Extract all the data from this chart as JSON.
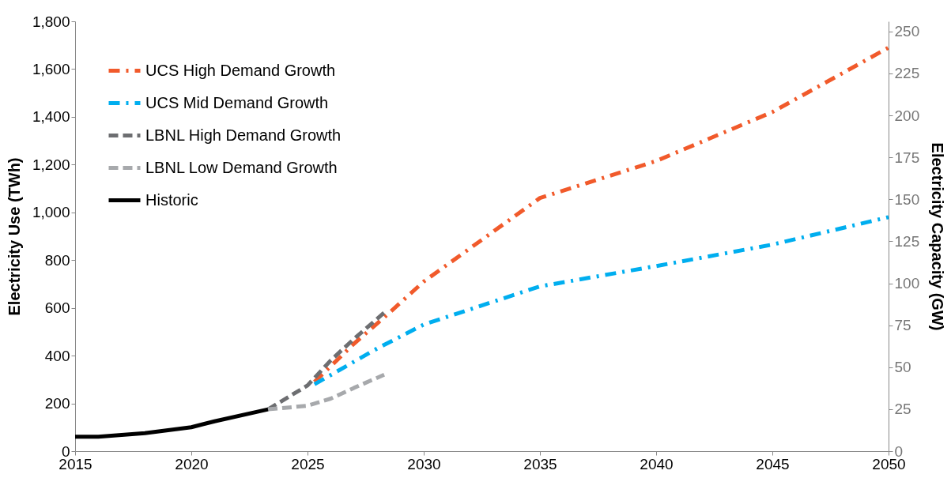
{
  "chart_data": {
    "type": "line",
    "xlabel": null,
    "ylabel": "Electricity Use (TWh)",
    "y2label": "Electricity Capacity (GW)",
    "xlim": [
      2015,
      2050
    ],
    "xticks": [
      2015,
      2020,
      2025,
      2030,
      2035,
      2040,
      2045,
      2050
    ],
    "ylim": [
      0,
      1800
    ],
    "yticks": [
      {
        "value": 0,
        "label": "0"
      },
      {
        "value": 200,
        "label": "200"
      },
      {
        "value": 400,
        "label": "400"
      },
      {
        "value": 600,
        "label": "600"
      },
      {
        "value": 800,
        "label": "800"
      },
      {
        "value": 1000,
        "label": "1,000"
      },
      {
        "value": 1200,
        "label": "1,200"
      },
      {
        "value": 1400,
        "label": "1,400"
      },
      {
        "value": 1600,
        "label": "1,600"
      },
      {
        "value": 1800,
        "label": "1,800"
      }
    ],
    "y2lim": [
      0,
      256
    ],
    "y2ticks": [
      0,
      25,
      50,
      75,
      100,
      125,
      150,
      175,
      200,
      225,
      250
    ],
    "grid": false,
    "legend": "top left",
    "marker": "none",
    "series": [
      {
        "name": "UCS High Demand Growth",
        "color": "#f15a2b",
        "line_style": "dashdot",
        "x": [
          2025.3,
          2027,
          2028.3,
          2030,
          2033,
          2035,
          2040,
          2045,
          2050
        ],
        "values": [
          290,
          450,
          560,
          710,
          920,
          1060,
          1215,
          1420,
          1690
        ]
      },
      {
        "name": "UCS Mid Demand Growth",
        "color": "#00aeef",
        "line_style": "dashdot",
        "x": [
          2025.3,
          2028,
          2030,
          2035,
          2040,
          2045,
          2050
        ],
        "values": [
          280,
          430,
          530,
          690,
          775,
          865,
          980
        ]
      },
      {
        "name": "LBNL High Demand Growth",
        "color": "#6d6e71",
        "line_style": "dashed",
        "x": [
          2023.3,
          2025,
          2026,
          2027,
          2028.3
        ],
        "values": [
          175,
          275,
          380,
          470,
          580
        ]
      },
      {
        "name": "LBNL Low Demand Growth",
        "color": "#a7a9ac",
        "line_style": "dashed",
        "x": [
          2023.3,
          2025,
          2026,
          2027,
          2028.3
        ],
        "values": [
          175,
          190,
          220,
          265,
          320
        ]
      },
      {
        "name": "Historic",
        "color": "#000000",
        "line_style": "solid",
        "x": [
          2015,
          2016,
          2018,
          2020,
          2021,
          2023.3
        ],
        "values": [
          60,
          60,
          75,
          100,
          125,
          175
        ]
      }
    ]
  }
}
